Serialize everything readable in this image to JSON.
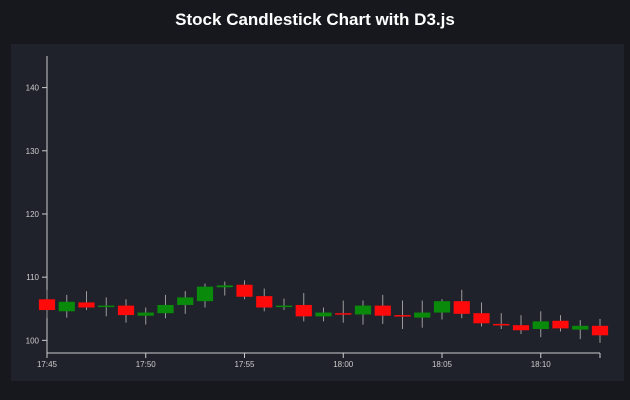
{
  "page": {
    "title": "Stock Candlestick Chart with D3.js"
  },
  "colors": {
    "background": "#16181d",
    "panel": "#1f222b",
    "axis": "#cccccc",
    "bullish": "#0a8a0a",
    "bearish": "#ff0a0a",
    "wick": "#9a9a9a"
  },
  "chart_data": {
    "type": "candlestick",
    "title": "",
    "xlabel": "",
    "ylabel": "",
    "ylim": [
      98,
      145
    ],
    "xlim": [
      "17:45",
      "18:13"
    ],
    "x_ticks": [
      "17:45",
      "17:50",
      "17:55",
      "18:00",
      "18:05",
      "18:10"
    ],
    "y_ticks": [
      100,
      110,
      120,
      130,
      140
    ],
    "grid": false,
    "interval_minutes": 1,
    "candles": [
      {
        "time": "17:45",
        "open": 106.5,
        "high": 108.0,
        "low": 103.5,
        "close": 104.8
      },
      {
        "time": "17:46",
        "open": 104.6,
        "high": 107.2,
        "low": 103.6,
        "close": 106.1
      },
      {
        "time": "17:47",
        "open": 106.0,
        "high": 107.8,
        "low": 104.8,
        "close": 105.2
      },
      {
        "time": "17:48",
        "open": 105.4,
        "high": 106.8,
        "low": 103.8,
        "close": 105.5
      },
      {
        "time": "17:49",
        "open": 105.5,
        "high": 106.5,
        "low": 102.8,
        "close": 104.0
      },
      {
        "time": "17:50",
        "open": 103.9,
        "high": 105.2,
        "low": 102.5,
        "close": 104.4
      },
      {
        "time": "17:51",
        "open": 104.3,
        "high": 107.2,
        "low": 103.5,
        "close": 105.6
      },
      {
        "time": "17:52",
        "open": 105.6,
        "high": 107.8,
        "low": 104.2,
        "close": 106.8
      },
      {
        "time": "17:53",
        "open": 106.2,
        "high": 109.0,
        "low": 105.2,
        "close": 108.5
      },
      {
        "time": "17:54",
        "open": 108.4,
        "high": 109.3,
        "low": 107.1,
        "close": 108.7
      },
      {
        "time": "17:55",
        "open": 108.8,
        "high": 109.5,
        "low": 106.5,
        "close": 106.9
      },
      {
        "time": "17:56",
        "open": 107.0,
        "high": 108.2,
        "low": 104.6,
        "close": 105.2
      },
      {
        "time": "17:57",
        "open": 105.4,
        "high": 106.6,
        "low": 104.8,
        "close": 105.5
      },
      {
        "time": "17:58",
        "open": 105.6,
        "high": 107.5,
        "low": 103.0,
        "close": 103.8
      },
      {
        "time": "17:59",
        "open": 103.8,
        "high": 105.2,
        "low": 103.0,
        "close": 104.4
      },
      {
        "time": "18:00",
        "open": 104.3,
        "high": 106.3,
        "low": 102.8,
        "close": 104.1
      },
      {
        "time": "18:01",
        "open": 104.1,
        "high": 106.3,
        "low": 102.5,
        "close": 105.5
      },
      {
        "time": "18:02",
        "open": 105.5,
        "high": 107.2,
        "low": 102.6,
        "close": 103.9
      },
      {
        "time": "18:03",
        "open": 104.0,
        "high": 106.3,
        "low": 101.8,
        "close": 103.9
      },
      {
        "time": "18:04",
        "open": 103.6,
        "high": 106.3,
        "low": 102.0,
        "close": 104.4
      },
      {
        "time": "18:05",
        "open": 104.4,
        "high": 106.5,
        "low": 103.3,
        "close": 106.2
      },
      {
        "time": "18:06",
        "open": 106.2,
        "high": 108.0,
        "low": 103.5,
        "close": 104.2
      },
      {
        "time": "18:07",
        "open": 104.3,
        "high": 106.0,
        "low": 102.2,
        "close": 102.7
      },
      {
        "time": "18:08",
        "open": 102.6,
        "high": 104.3,
        "low": 101.8,
        "close": 102.5
      },
      {
        "time": "18:09",
        "open": 102.4,
        "high": 104.0,
        "low": 101.0,
        "close": 101.6
      },
      {
        "time": "18:10",
        "open": 101.8,
        "high": 104.6,
        "low": 100.5,
        "close": 103.0
      },
      {
        "time": "18:11",
        "open": 103.1,
        "high": 104.0,
        "low": 101.4,
        "close": 101.9
      },
      {
        "time": "18:12",
        "open": 101.7,
        "high": 103.2,
        "low": 100.2,
        "close": 102.3
      },
      {
        "time": "18:13",
        "open": 102.3,
        "high": 103.4,
        "low": 99.6,
        "close": 100.8
      }
    ]
  }
}
